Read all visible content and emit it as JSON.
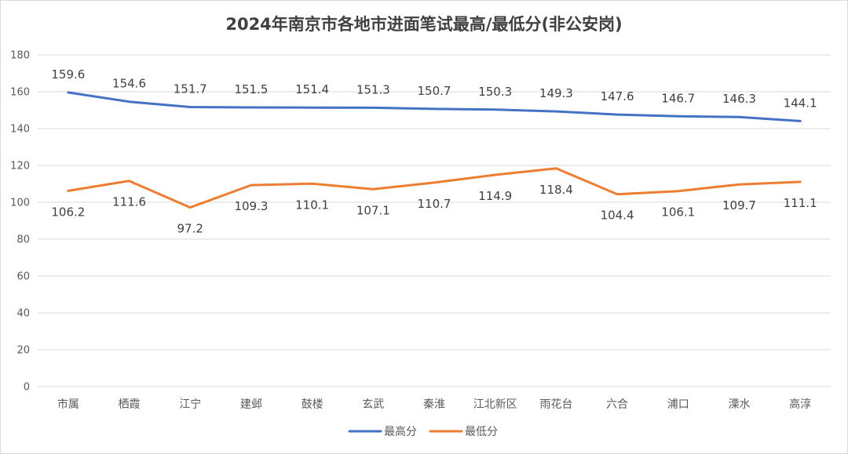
{
  "chart_data": {
    "type": "line",
    "title": "2024年南京市各地市进面笔试最高/最低分(非公安岗)",
    "xlabel": "",
    "ylabel": "",
    "ylim": [
      0,
      180
    ],
    "yticks": [
      0,
      20,
      40,
      60,
      80,
      100,
      120,
      140,
      160,
      180
    ],
    "grid": true,
    "legend_position": "bottom",
    "categories": [
      "市属",
      "栖霞",
      "江宁",
      "建邺",
      "鼓楼",
      "玄武",
      "秦淮",
      "江北新区",
      "雨花台",
      "六合",
      "浦口",
      "溧水",
      "高淳"
    ],
    "series": [
      {
        "name": "最高分",
        "color": "#4472c4",
        "label_position": "above",
        "values": [
          159.6,
          154.6,
          151.7,
          151.5,
          151.4,
          151.3,
          150.7,
          150.3,
          149.3,
          147.6,
          146.7,
          146.3,
          144.1
        ]
      },
      {
        "name": "最低分",
        "color": "#ed7d31",
        "label_position": "below",
        "values": [
          106.2,
          111.6,
          97.2,
          109.3,
          110.1,
          107.1,
          110.7,
          114.9,
          118.4,
          104.4,
          106.1,
          109.7,
          111.1
        ]
      }
    ]
  }
}
